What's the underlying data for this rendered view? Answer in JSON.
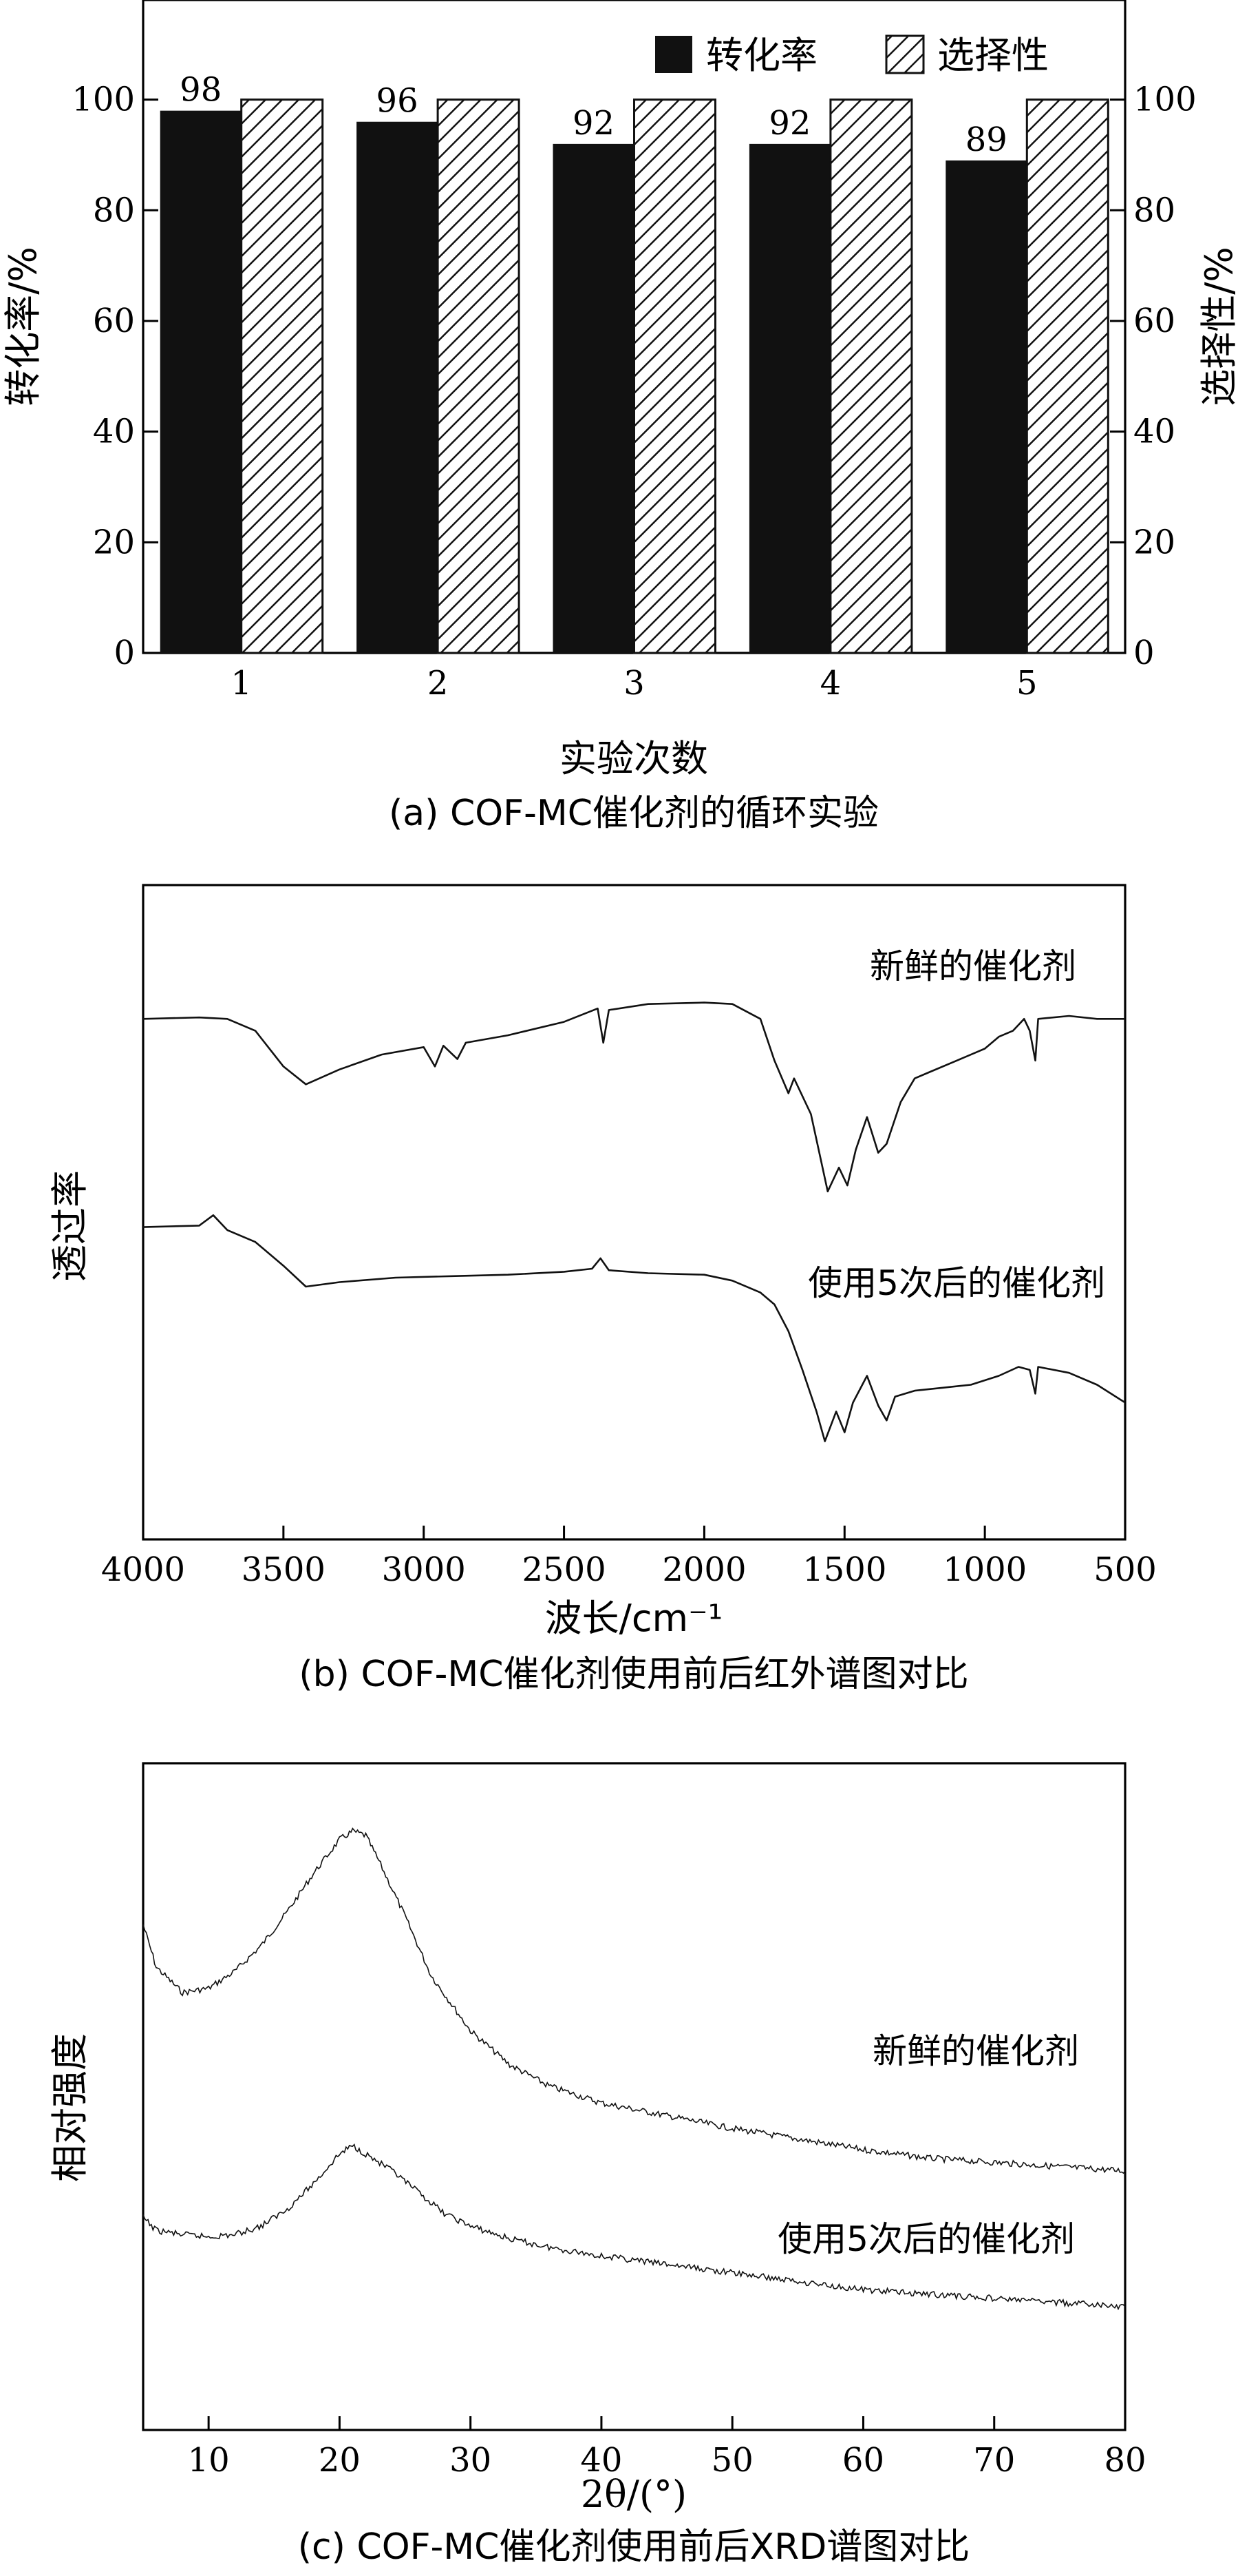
{
  "chart_data": [
    {
      "type": "bar",
      "panel": "a",
      "caption": "(a) COF-MC催化剂的循环实验",
      "categories": [
        "1",
        "2",
        "3",
        "4",
        "5"
      ],
      "series": [
        {
          "name": "转化率",
          "values": [
            98,
            96,
            92,
            92,
            89
          ],
          "fill": "solid-black"
        },
        {
          "name": "选择性",
          "values": [
            100,
            100,
            100,
            100,
            100
          ],
          "fill": "hatched"
        }
      ],
      "data_labels": [
        "98",
        "96",
        "92",
        "92",
        "89"
      ],
      "xlabel": "实验次数",
      "ylabel_left": "转化率/%",
      "ylabel_right": "选择性/%",
      "ylim": [
        0,
        118
      ],
      "yticks": [
        "0",
        "20",
        "40",
        "60",
        "80",
        "100"
      ],
      "legend_position": "top-right",
      "grid": false,
      "colors": {
        "bar": "#111111",
        "hatch": "#111111",
        "background": "#ffffff"
      }
    },
    {
      "type": "line",
      "panel": "b",
      "caption": "(b) COF-MC催化剂使用前后红外谱图对比",
      "xlabel": "波长/cm⁻¹",
      "ylabel": "透过率",
      "xlim": [
        4000,
        500
      ],
      "x_reversed": true,
      "xticks": [
        "4000",
        "3500",
        "3000",
        "2500",
        "2000",
        "1500",
        "1000",
        "500"
      ],
      "y_ticks_shown": false,
      "series": [
        {
          "name": "新鲜的催化剂",
          "points": [
            [
              4000,
              0.8
            ],
            [
              3800,
              0.805
            ],
            [
              3700,
              0.8
            ],
            [
              3600,
              0.76
            ],
            [
              3500,
              0.64
            ],
            [
              3420,
              0.58
            ],
            [
              3300,
              0.63
            ],
            [
              3150,
              0.68
            ],
            [
              3000,
              0.705
            ],
            [
              2960,
              0.64
            ],
            [
              2930,
              0.71
            ],
            [
              2880,
              0.665
            ],
            [
              2850,
              0.72
            ],
            [
              2700,
              0.745
            ],
            [
              2500,
              0.79
            ],
            [
              2380,
              0.835
            ],
            [
              2360,
              0.72
            ],
            [
              2340,
              0.83
            ],
            [
              2200,
              0.85
            ],
            [
              2000,
              0.855
            ],
            [
              1900,
              0.85
            ],
            [
              1800,
              0.8
            ],
            [
              1750,
              0.66
            ],
            [
              1700,
              0.55
            ],
            [
              1680,
              0.6
            ],
            [
              1620,
              0.48
            ],
            [
              1560,
              0.22
            ],
            [
              1520,
              0.3
            ],
            [
              1490,
              0.24
            ],
            [
              1460,
              0.36
            ],
            [
              1420,
              0.47
            ],
            [
              1380,
              0.35
            ],
            [
              1350,
              0.38
            ],
            [
              1300,
              0.52
            ],
            [
              1250,
              0.6
            ],
            [
              1200,
              0.62
            ],
            [
              1100,
              0.66
            ],
            [
              1000,
              0.7
            ],
            [
              950,
              0.74
            ],
            [
              900,
              0.76
            ],
            [
              860,
              0.8
            ],
            [
              840,
              0.76
            ],
            [
              820,
              0.66
            ],
            [
              810,
              0.8
            ],
            [
              700,
              0.81
            ],
            [
              600,
              0.8
            ],
            [
              500,
              0.8
            ]
          ]
        },
        {
          "name": "使用5次后的催化剂",
          "points": [
            [
              4000,
              0.1
            ],
            [
              3800,
              0.105
            ],
            [
              3750,
              0.14
            ],
            [
              3700,
              0.09
            ],
            [
              3600,
              0.05
            ],
            [
              3500,
              -0.03
            ],
            [
              3420,
              -0.1
            ],
            [
              3300,
              -0.085
            ],
            [
              3100,
              -0.07
            ],
            [
              2900,
              -0.065
            ],
            [
              2700,
              -0.06
            ],
            [
              2500,
              -0.05
            ],
            [
              2400,
              -0.04
            ],
            [
              2370,
              -0.005
            ],
            [
              2340,
              -0.045
            ],
            [
              2200,
              -0.055
            ],
            [
              2000,
              -0.06
            ],
            [
              1900,
              -0.08
            ],
            [
              1800,
              -0.12
            ],
            [
              1750,
              -0.16
            ],
            [
              1700,
              -0.25
            ],
            [
              1650,
              -0.38
            ],
            [
              1600,
              -0.52
            ],
            [
              1570,
              -0.62
            ],
            [
              1530,
              -0.52
            ],
            [
              1500,
              -0.59
            ],
            [
              1470,
              -0.49
            ],
            [
              1420,
              -0.4
            ],
            [
              1380,
              -0.5
            ],
            [
              1350,
              -0.55
            ],
            [
              1320,
              -0.47
            ],
            [
              1250,
              -0.45
            ],
            [
              1150,
              -0.44
            ],
            [
              1050,
              -0.43
            ],
            [
              950,
              -0.4
            ],
            [
              880,
              -0.37
            ],
            [
              840,
              -0.38
            ],
            [
              820,
              -0.46
            ],
            [
              810,
              -0.37
            ],
            [
              700,
              -0.39
            ],
            [
              600,
              -0.43
            ],
            [
              500,
              -0.49
            ]
          ]
        }
      ]
    },
    {
      "type": "line",
      "panel": "c",
      "caption": "(c) COF-MC催化剂使用前后XRD谱图对比",
      "xlabel": "2θ/(°)",
      "ylabel": "相对强度",
      "xlim": [
        5,
        80
      ],
      "xticks": [
        "10",
        "20",
        "30",
        "40",
        "50",
        "60",
        "70",
        "80"
      ],
      "y_ticks_shown": false,
      "series": [
        {
          "name": "新鲜的催化剂",
          "points": [
            [
              5,
              0.74
            ],
            [
              6,
              0.64
            ],
            [
              8,
              0.58
            ],
            [
              10,
              0.59
            ],
            [
              12,
              0.63
            ],
            [
              14,
              0.69
            ],
            [
              16,
              0.77
            ],
            [
              18,
              0.86
            ],
            [
              20,
              0.94
            ],
            [
              21,
              0.96
            ],
            [
              22,
              0.95
            ],
            [
              23,
              0.89
            ],
            [
              25,
              0.76
            ],
            [
              27,
              0.62
            ],
            [
              30,
              0.49
            ],
            [
              33,
              0.41
            ],
            [
              36,
              0.36
            ],
            [
              40,
              0.32
            ],
            [
              45,
              0.29
            ],
            [
              50,
              0.26
            ],
            [
              55,
              0.235
            ],
            [
              60,
              0.21
            ],
            [
              65,
              0.19
            ],
            [
              70,
              0.18
            ],
            [
              75,
              0.17
            ],
            [
              80,
              0.16
            ]
          ]
        },
        {
          "name": "使用5次后的催化剂",
          "points": [
            [
              5,
              0.05
            ],
            [
              6,
              0.02
            ],
            [
              8,
              0.01
            ],
            [
              10,
              0.005
            ],
            [
              12,
              0.01
            ],
            [
              14,
              0.03
            ],
            [
              16,
              0.07
            ],
            [
              18,
              0.13
            ],
            [
              20,
              0.2
            ],
            [
              21,
              0.22
            ],
            [
              22,
              0.2
            ],
            [
              24,
              0.16
            ],
            [
              26,
              0.11
            ],
            [
              28,
              0.06
            ],
            [
              30,
              0.03
            ],
            [
              33,
              0.0
            ],
            [
              36,
              -0.02
            ],
            [
              40,
              -0.04
            ],
            [
              45,
              -0.06
            ],
            [
              50,
              -0.08
            ],
            [
              55,
              -0.1
            ],
            [
              60,
              -0.12
            ],
            [
              65,
              -0.13
            ],
            [
              70,
              -0.14
            ],
            [
              75,
              -0.15
            ],
            [
              80,
              -0.16
            ]
          ]
        }
      ]
    }
  ]
}
